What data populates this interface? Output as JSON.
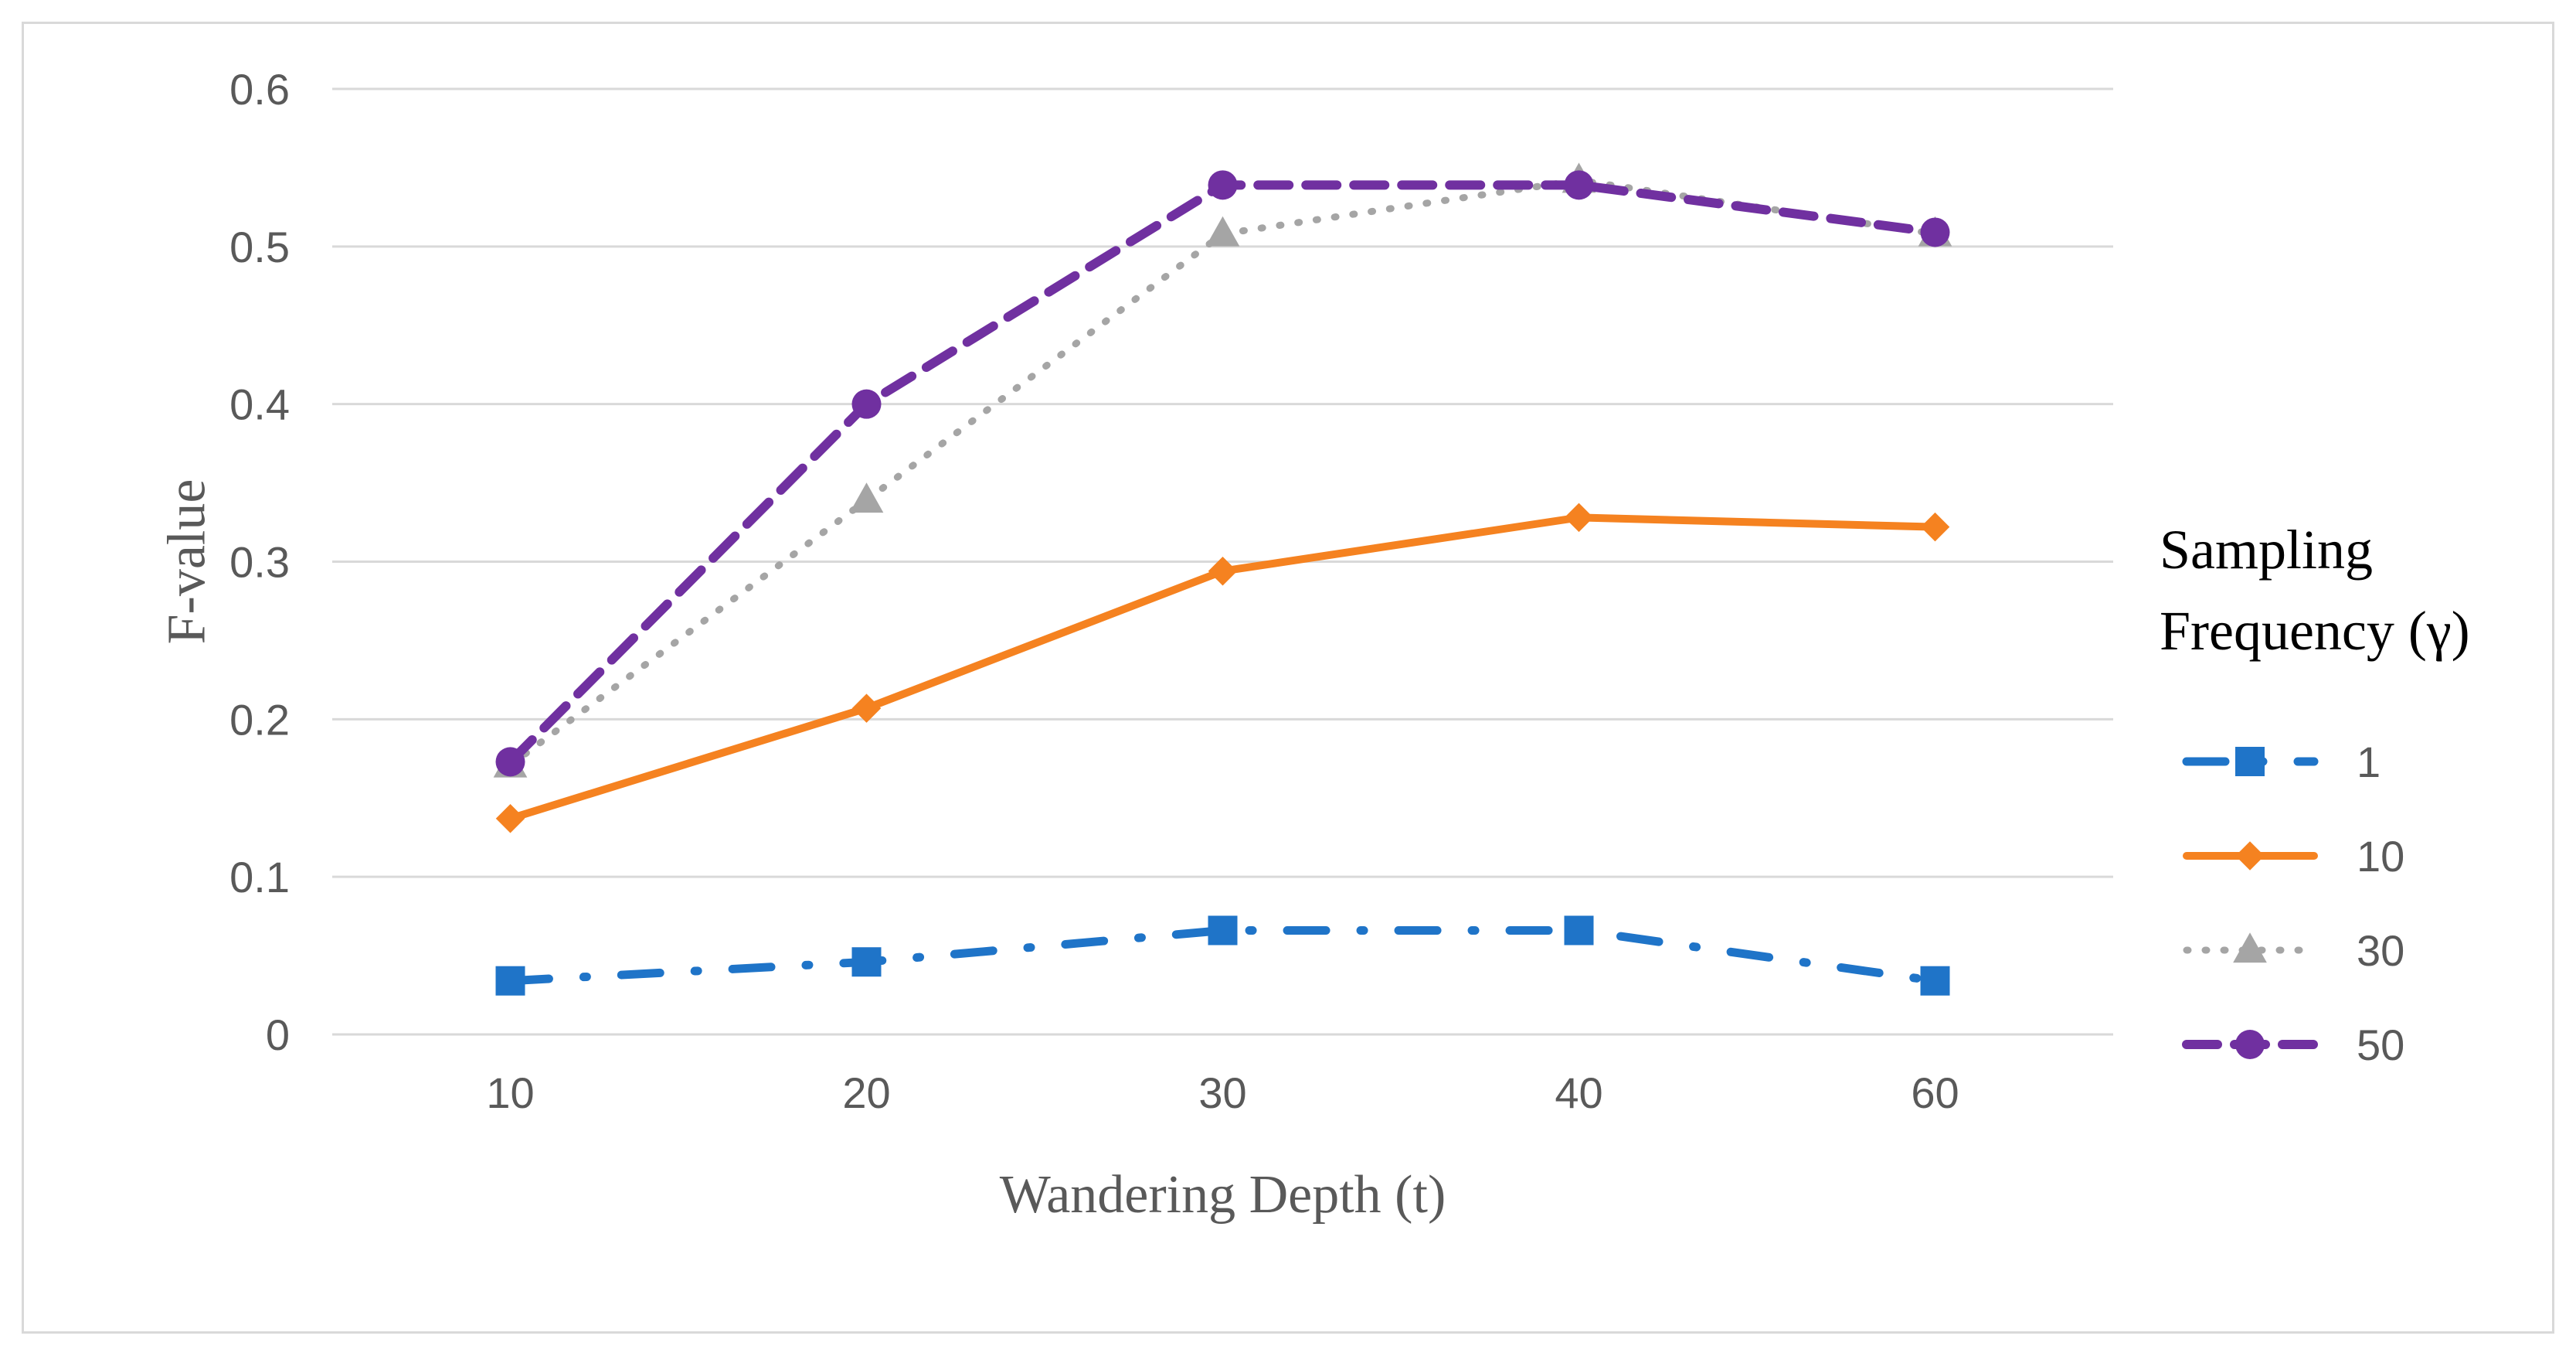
{
  "chart_data": {
    "type": "line",
    "title": "",
    "xlabel": "Wandering Depth (t)",
    "ylabel": "F-value",
    "categories": [
      "10",
      "20",
      "30",
      "40",
      "60"
    ],
    "ylim": [
      0,
      0.6
    ],
    "yticks": [
      "0",
      "0.1",
      "0.2",
      "0.3",
      "0.4",
      "0.5",
      "0.6"
    ],
    "grid": true,
    "legend_title_lines": [
      "Sampling",
      "Frequency (γ)"
    ],
    "legend_position": "right",
    "series": [
      {
        "name": "1",
        "values": [
          0.034,
          0.046,
          0.066,
          0.066,
          0.034
        ],
        "color": "#1f74c8",
        "marker": "square",
        "dash": "dashdot"
      },
      {
        "name": "10",
        "values": [
          0.137,
          0.207,
          0.294,
          0.328,
          0.322
        ],
        "color": "#f58220",
        "marker": "diamond",
        "dash": "solid"
      },
      {
        "name": "30",
        "values": [
          0.171,
          0.339,
          0.508,
          0.542,
          0.508
        ],
        "color": "#a5a5a5",
        "marker": "triangle",
        "dash": "dotted"
      },
      {
        "name": "50",
        "values": [
          0.173,
          0.4,
          0.539,
          0.539,
          0.509
        ],
        "color": "#7030a0",
        "marker": "circle",
        "dash": "dashed"
      }
    ]
  }
}
